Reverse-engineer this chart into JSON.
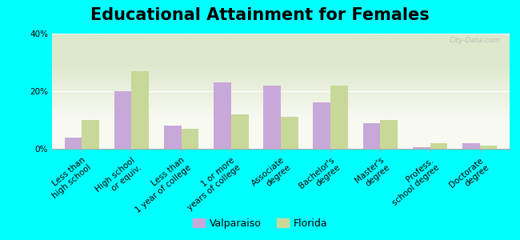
{
  "title": "Educational Attainment for Females",
  "categories": [
    "Less than\nhigh school",
    "High school\nor equiv.",
    "Less than\n1 year of college",
    "1 or more\nyears of college",
    "Associate\ndegree",
    "Bachelor's\ndegree",
    "Master's\ndegree",
    "Profess.\nschool degree",
    "Doctorate\ndegree"
  ],
  "valparaiso": [
    4,
    20,
    8,
    23,
    22,
    16,
    9,
    0.5,
    2
  ],
  "florida": [
    10,
    27,
    7,
    12,
    11,
    22,
    10,
    2,
    1
  ],
  "valparaiso_color": "#c8a8d8",
  "florida_color": "#c8d898",
  "background_color": "#00ffff",
  "plot_bg_top": "#dde8cc",
  "plot_bg_bottom": "#f8faf2",
  "ylim": [
    0,
    40
  ],
  "yticks": [
    0,
    20,
    40
  ],
  "ytick_labels": [
    "0%",
    "20%",
    "40%"
  ],
  "watermark": "City-Data.com",
  "legend_labels": [
    "Valparaiso",
    "Florida"
  ],
  "title_fontsize": 15,
  "tick_fontsize": 7.5
}
